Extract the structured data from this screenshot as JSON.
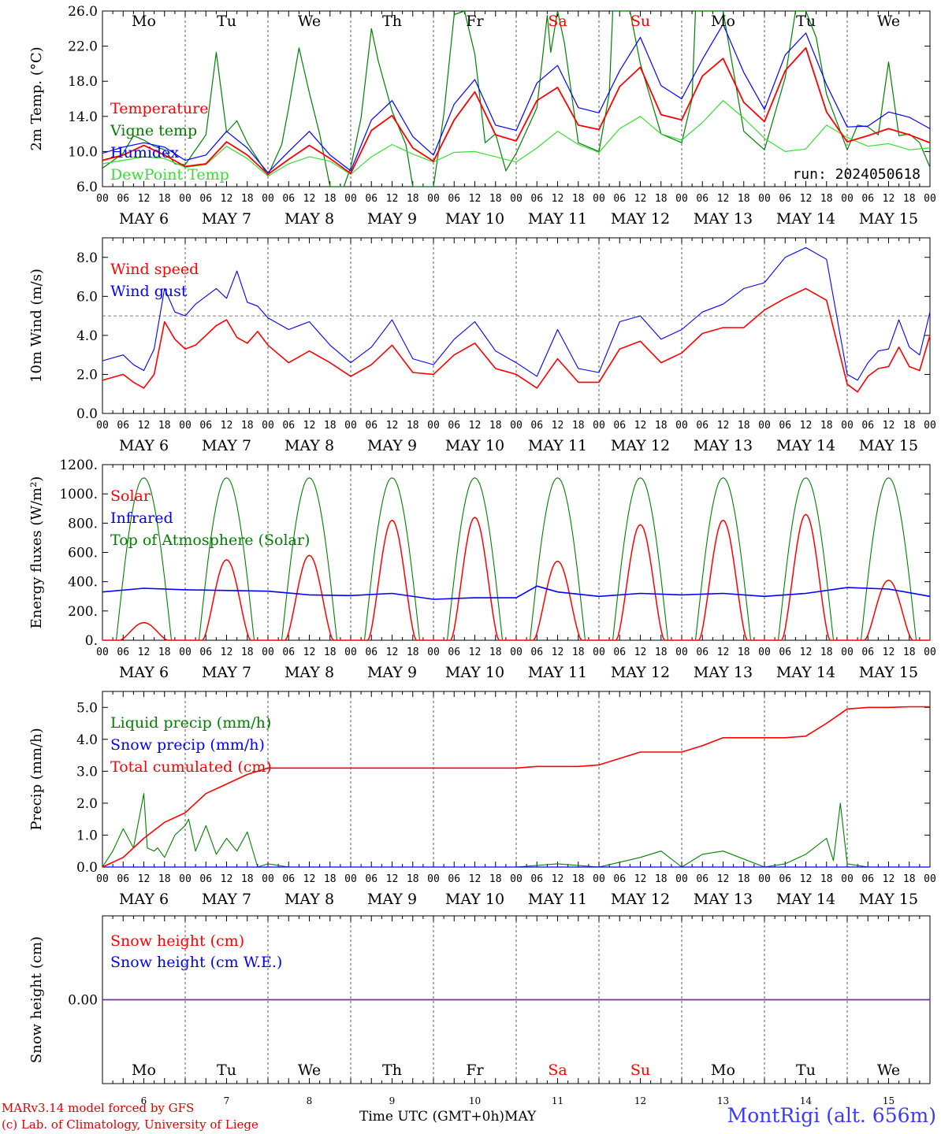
{
  "meta": {
    "run_label": "run: 2024050618",
    "credit_line1": "MARv3.14 model forced by GFS",
    "credit_line2": "(c) Lab. of Climatology, University of Liege",
    "station": "MontRigi (alt. 656m)",
    "x_axis_title": "Time UTC (GMT+0h)",
    "x_axis_month": "MAY",
    "hour_ticks": [
      "00",
      "06",
      "12",
      "18"
    ],
    "final_hour_tick": "00",
    "day_labels": [
      "MAY  6",
      "MAY  7",
      "MAY  8",
      "MAY  9",
      "MAY 10",
      "MAY 11",
      "MAY 12",
      "MAY 13",
      "MAY 14",
      "MAY 15"
    ],
    "weekdays": [
      "Mo",
      "Tu",
      "We",
      "Th",
      "Fr",
      "Sa",
      "Su",
      "Mo",
      "Tu",
      "We"
    ],
    "weekend_indices": [
      5,
      6
    ],
    "bottom_day_numbers": [
      "6",
      "7",
      "8",
      "9",
      "10",
      "11",
      "12",
      "13",
      "14",
      "15"
    ],
    "colors": {
      "red": "#ff0000",
      "green": "#008000",
      "lightgreen": "#33e033",
      "blue": "#0000ff",
      "purple": "#7030a0",
      "weekend": "#ff0000"
    }
  },
  "chart_data": [
    {
      "id": "temperature",
      "type": "line",
      "ylabel": "2m Temp. (°C)",
      "ylim": [
        6,
        26
      ],
      "yticks": [
        6,
        10,
        14,
        18,
        22,
        26
      ],
      "ytick_labels": [
        "6.0",
        "10.0",
        "14.0",
        "18.0",
        "22.0",
        "26.0"
      ],
      "x_unit": "hours since 2024-05-06 00 UTC",
      "series": [
        {
          "name": "Temperature",
          "color": "red",
          "x": [
            0,
            6,
            12,
            18,
            24,
            30,
            36,
            42,
            48,
            54,
            60,
            66,
            72,
            78,
            84,
            90,
            96,
            102,
            108,
            114,
            120,
            126,
            132,
            138,
            144,
            150,
            156,
            162,
            168,
            174,
            180,
            186,
            192,
            198,
            204,
            210,
            216,
            222,
            228,
            234,
            240
          ],
          "y": [
            9.0,
            9.6,
            10.7,
            9.6,
            8.3,
            8.6,
            11.1,
            9.6,
            7.4,
            9.1,
            10.7,
            9.2,
            7.5,
            12.4,
            14.1,
            10.4,
            8.9,
            13.6,
            16.8,
            11.9,
            11.2,
            15.8,
            17.3,
            13.0,
            12.5,
            17.4,
            19.6,
            14.2,
            13.6,
            18.6,
            20.6,
            15.6,
            13.4,
            19.2,
            21.8,
            14.5,
            11.1,
            11.8,
            12.6,
            11.9,
            11.0
          ]
        },
        {
          "name": "Vigne temp",
          "color": "green",
          "x": [
            0,
            6,
            9,
            12,
            15,
            18,
            21,
            24,
            30,
            33,
            36,
            39,
            42,
            48,
            52,
            54,
            57,
            60,
            63,
            66,
            70,
            72,
            75,
            78,
            80,
            84,
            88,
            90,
            96,
            99,
            102,
            105,
            108,
            111,
            114,
            117,
            120,
            126,
            129,
            130,
            132,
            134,
            138,
            144,
            147,
            148,
            150,
            153,
            156,
            162,
            168,
            171,
            172,
            174,
            177,
            180,
            186,
            192,
            198,
            201,
            204,
            207,
            210,
            216,
            219,
            222,
            225,
            228,
            231,
            234,
            237,
            240
          ],
          "y": [
            8.1,
            9.8,
            11.8,
            11.3,
            10.6,
            10.2,
            8.6,
            8.5,
            11.9,
            21.3,
            12.2,
            13.5,
            11.0,
            7.3,
            10.8,
            15.0,
            21.8,
            16.7,
            12.0,
            6.0,
            6.0,
            8.2,
            13.8,
            24.0,
            20.3,
            14.6,
            10.8,
            6.0,
            6.0,
            14.2,
            25.6,
            26.0,
            21.1,
            11.0,
            12.0,
            7.8,
            9.8,
            15.0,
            25.5,
            21.3,
            26.0,
            22.3,
            11.0,
            10.0,
            16.6,
            26.0,
            26.0,
            26.0,
            20.0,
            12.0,
            11.0,
            16.0,
            26.0,
            26.0,
            26.0,
            26.0,
            12.3,
            10.2,
            18.4,
            26.0,
            26.0,
            23.0,
            16.5,
            10.2,
            13.0,
            12.8,
            11.9,
            20.2,
            11.8,
            12.0,
            11.0,
            8.2
          ]
        },
        {
          "name": "Humidex",
          "color": "blue",
          "x": [
            0,
            6,
            12,
            18,
            24,
            30,
            36,
            42,
            48,
            54,
            60,
            66,
            72,
            78,
            84,
            90,
            96,
            102,
            108,
            114,
            120,
            126,
            132,
            138,
            144,
            150,
            156,
            162,
            168,
            174,
            180,
            186,
            192,
            198,
            204,
            210,
            216,
            222,
            228,
            234,
            240
          ],
          "y": [
            9.8,
            10.5,
            11.0,
            10.5,
            9.0,
            9.6,
            12.3,
            10.4,
            7.6,
            10.0,
            12.3,
            9.6,
            7.8,
            13.6,
            15.8,
            11.7,
            9.6,
            15.4,
            18.2,
            13.0,
            12.4,
            17.8,
            19.8,
            15.0,
            14.4,
            19.2,
            23.0,
            17.5,
            16.0,
            20.5,
            24.5,
            19.0,
            14.8,
            21.0,
            23.5,
            17.6,
            12.8,
            12.9,
            14.5,
            13.9,
            12.6
          ]
        },
        {
          "name": "DewPoint Temp",
          "color": "lightgreen",
          "x": [
            0,
            6,
            12,
            18,
            24,
            30,
            36,
            42,
            48,
            54,
            60,
            66,
            72,
            78,
            84,
            90,
            96,
            102,
            108,
            114,
            120,
            126,
            132,
            138,
            144,
            150,
            156,
            162,
            168,
            174,
            180,
            186,
            192,
            198,
            204,
            210,
            216,
            222,
            228,
            234,
            240
          ],
          "y": [
            8.6,
            9.0,
            9.4,
            9.2,
            8.2,
            8.5,
            10.6,
            9.2,
            7.2,
            8.6,
            9.4,
            8.9,
            7.4,
            9.4,
            10.8,
            9.7,
            8.8,
            9.9,
            10.0,
            9.4,
            8.8,
            10.4,
            12.3,
            10.8,
            9.9,
            12.6,
            14.0,
            12.0,
            11.3,
            13.3,
            15.8,
            13.8,
            11.5,
            10.0,
            10.3,
            13.0,
            11.6,
            10.6,
            10.9,
            10.2,
            10.4
          ]
        }
      ]
    },
    {
      "id": "wind",
      "type": "line",
      "ylabel": "10m Wind (m/s)",
      "ylim": [
        0,
        9
      ],
      "yticks": [
        0,
        2,
        4,
        6,
        8
      ],
      "ytick_labels": [
        "0.0",
        "2.0",
        "4.0",
        "6.0",
        "8.0"
      ],
      "reference_line": 5.0,
      "series": [
        {
          "name": "Wind speed",
          "color": "red",
          "x": [
            0,
            6,
            9,
            12,
            15,
            18,
            21,
            24,
            27,
            30,
            33,
            36,
            39,
            42,
            45,
            48,
            54,
            60,
            66,
            72,
            78,
            84,
            90,
            96,
            102,
            108,
            114,
            120,
            126,
            132,
            138,
            144,
            150,
            156,
            162,
            168,
            174,
            180,
            186,
            192,
            198,
            204,
            210,
            216,
            219,
            222,
            225,
            228,
            231,
            234,
            237,
            240
          ],
          "y": [
            1.7,
            2.0,
            1.6,
            1.3,
            2.0,
            4.7,
            3.8,
            3.3,
            3.5,
            4.0,
            4.5,
            4.8,
            3.9,
            3.6,
            4.2,
            3.5,
            2.6,
            3.2,
            2.6,
            1.9,
            2.5,
            3.5,
            2.1,
            2.0,
            3.0,
            3.6,
            2.3,
            2.0,
            1.3,
            2.8,
            1.6,
            1.6,
            3.3,
            3.7,
            2.6,
            3.1,
            4.1,
            4.4,
            4.4,
            5.3,
            5.9,
            6.4,
            5.8,
            1.5,
            1.1,
            1.9,
            2.3,
            2.4,
            3.4,
            2.4,
            2.2,
            4.0
          ]
        },
        {
          "name": "Wind gust",
          "color": "blue",
          "x": [
            0,
            6,
            9,
            12,
            15,
            18,
            21,
            24,
            27,
            30,
            33,
            36,
            39,
            42,
            45,
            48,
            54,
            60,
            66,
            72,
            78,
            84,
            90,
            96,
            102,
            108,
            114,
            120,
            126,
            132,
            138,
            144,
            150,
            156,
            162,
            168,
            174,
            180,
            186,
            192,
            198,
            204,
            210,
            216,
            219,
            222,
            225,
            228,
            231,
            234,
            237,
            240
          ],
          "y": [
            2.7,
            3.0,
            2.5,
            2.2,
            3.3,
            6.4,
            5.2,
            5.0,
            5.6,
            6.0,
            6.4,
            5.9,
            7.3,
            5.7,
            5.5,
            4.9,
            4.3,
            4.7,
            3.5,
            2.6,
            3.4,
            4.8,
            2.8,
            2.5,
            3.8,
            4.7,
            3.2,
            2.6,
            1.9,
            4.3,
            2.3,
            2.1,
            4.7,
            5.0,
            3.8,
            4.3,
            5.2,
            5.6,
            6.4,
            6.7,
            8.0,
            8.5,
            7.9,
            2.0,
            1.7,
            2.6,
            3.2,
            3.3,
            4.8,
            3.4,
            3.0,
            5.2
          ]
        }
      ]
    },
    {
      "id": "energy",
      "type": "line",
      "ylabel": "Energy fluxes (W/m²)",
      "ylim": [
        0,
        1200
      ],
      "yticks": [
        0,
        200,
        400,
        600,
        800,
        1000,
        1200
      ],
      "ytick_labels": [
        "0.",
        "200.",
        "400.",
        "600.",
        "800.",
        "1000.",
        "1200."
      ],
      "series": [
        {
          "name": "Solar",
          "color": "red",
          "day_peaks": [
            120,
            550,
            580,
            820,
            840,
            540,
            790,
            820,
            860,
            410
          ]
        },
        {
          "name": "Infrared",
          "color": "blue",
          "x": [
            0,
            12,
            24,
            36,
            48,
            60,
            72,
            84,
            96,
            108,
            120,
            126,
            132,
            144,
            156,
            168,
            180,
            192,
            204,
            216,
            228,
            240
          ],
          "y": [
            330,
            355,
            345,
            340,
            335,
            310,
            305,
            320,
            280,
            290,
            290,
            370,
            330,
            300,
            320,
            310,
            320,
            300,
            320,
            360,
            350,
            300
          ]
        },
        {
          "name": "Top of Atmosphere (Solar)",
          "color": "green",
          "day_peak": 1110
        }
      ]
    },
    {
      "id": "precip",
      "type": "line",
      "ylabel": "Precip (mm/h)",
      "ylim": [
        0,
        5.5
      ],
      "yticks": [
        0,
        1,
        2,
        3,
        4,
        5
      ],
      "ytick_labels": [
        "0.0",
        "1.0",
        "2.0",
        "3.0",
        "4.0",
        "5.0"
      ],
      "series": [
        {
          "name": "Liquid precip (mm/h)",
          "color": "green",
          "x": [
            0,
            3,
            6,
            9,
            12,
            13,
            15,
            16,
            18,
            21,
            24,
            25,
            27,
            30,
            33,
            36,
            39,
            42,
            45,
            48,
            54,
            60,
            66,
            72,
            120,
            132,
            144,
            156,
            162,
            168,
            174,
            180,
            192,
            198,
            204,
            210,
            212,
            214,
            216,
            222,
            228,
            240
          ],
          "y": [
            0.0,
            0.5,
            1.2,
            0.6,
            2.3,
            0.6,
            0.5,
            0.6,
            0.3,
            1.0,
            1.3,
            1.5,
            0.5,
            1.3,
            0.4,
            0.9,
            0.5,
            1.1,
            0.0,
            0.1,
            0.0,
            0.0,
            0.0,
            0.0,
            0.0,
            0.1,
            0.0,
            0.3,
            0.5,
            0.0,
            0.4,
            0.5,
            0.0,
            0.1,
            0.4,
            0.9,
            0.2,
            2.0,
            0.1,
            0.0,
            0.0,
            0.0
          ]
        },
        {
          "name": "Snow precip (mm/h)",
          "color": "blue",
          "x": [
            0,
            240
          ],
          "y": [
            0.0,
            0.0
          ]
        },
        {
          "name": "Total cumulated (cm)",
          "color": "red",
          "x": [
            0,
            6,
            12,
            18,
            24,
            30,
            36,
            42,
            48,
            54,
            60,
            66,
            72,
            78,
            84,
            90,
            96,
            102,
            108,
            114,
            120,
            126,
            132,
            138,
            144,
            150,
            156,
            162,
            168,
            174,
            180,
            186,
            192,
            198,
            204,
            210,
            216,
            222,
            228,
            234,
            240
          ],
          "y": [
            0.0,
            0.3,
            0.9,
            1.4,
            1.7,
            2.3,
            2.6,
            2.9,
            3.1,
            3.1,
            3.1,
            3.1,
            3.1,
            3.1,
            3.1,
            3.1,
            3.1,
            3.1,
            3.1,
            3.1,
            3.1,
            3.15,
            3.15,
            3.15,
            3.2,
            3.4,
            3.6,
            3.6,
            3.6,
            3.8,
            4.05,
            4.05,
            4.05,
            4.05,
            4.1,
            4.5,
            4.95,
            5.0,
            5.0,
            5.02,
            5.02
          ]
        }
      ]
    },
    {
      "id": "snow",
      "type": "line",
      "ylabel": "Snow height (cm)",
      "ytick_labels": [
        "0.00"
      ],
      "series": [
        {
          "name": "Snow height (cm)",
          "color": "red",
          "x": [
            0,
            240
          ],
          "y": [
            0,
            0
          ]
        },
        {
          "name": "Snow height (cm W.E.)",
          "color": "blue",
          "x": [
            0,
            240
          ],
          "y": [
            0,
            0
          ]
        }
      ]
    }
  ]
}
